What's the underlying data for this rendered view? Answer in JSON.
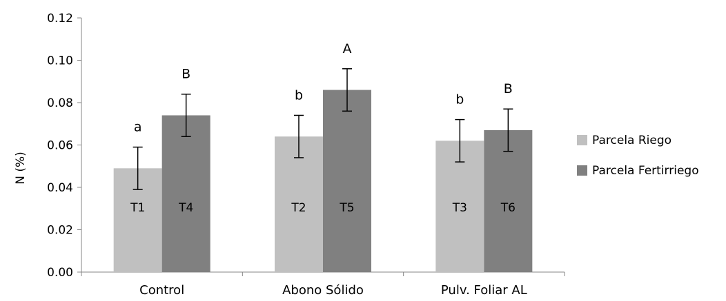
{
  "chart_data": {
    "type": "bar",
    "ylabel": "N (%)",
    "ylim": [
      0,
      0.12
    ],
    "yticks": [
      "0.00",
      "0.02",
      "0.04",
      "0.06",
      "0.08",
      "0.10",
      "0.12"
    ],
    "categories": [
      "Control",
      "Abono Sólido",
      "Pulv. Foliar AL"
    ],
    "series": [
      {
        "name": "Parcela Riego",
        "color": "#c0c0c0",
        "values": [
          0.049,
          0.064,
          0.062
        ],
        "errors": [
          0.01,
          0.01,
          0.01
        ],
        "sig_labels": [
          "a",
          "b",
          "b"
        ],
        "treatments": [
          "T1",
          "T2",
          "T3"
        ]
      },
      {
        "name": "Parcela Fertirriego",
        "color": "#808080",
        "values": [
          0.074,
          0.086,
          0.067
        ],
        "errors": [
          0.01,
          0.01,
          0.01
        ],
        "sig_labels": [
          "B",
          "A",
          "B"
        ],
        "treatments": [
          "T4",
          "T5",
          "T6"
        ]
      }
    ],
    "legend_position": "right",
    "grid": false
  }
}
